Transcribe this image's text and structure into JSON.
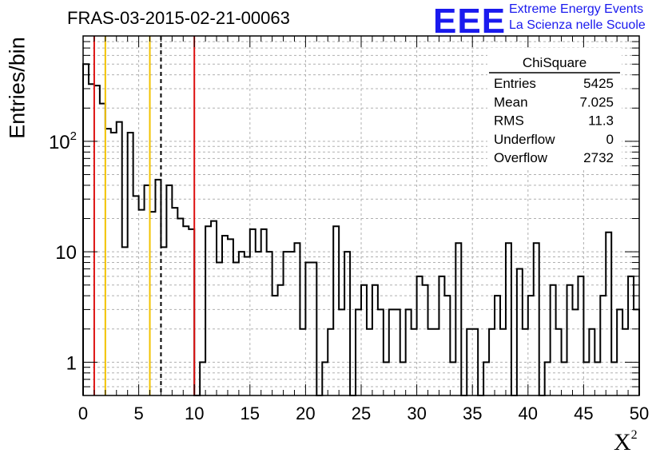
{
  "chart_data": {
    "type": "histogram",
    "title": "FRAS-03-2015-02-21-00063",
    "xlabel": "X",
    "xlabel_superscript": "2",
    "ylabel": "Entries/bin",
    "x_range": [
      0,
      50
    ],
    "y_scale": "log",
    "y_range": [
      0.5,
      900
    ],
    "bin_width": 0.5,
    "x_ticks": [
      0,
      5,
      10,
      15,
      20,
      25,
      30,
      35,
      40,
      45,
      50
    ],
    "y_ticks": [
      {
        "value": 1,
        "label": "1"
      },
      {
        "value": 10,
        "label": "10"
      },
      {
        "value": 100,
        "label": "10",
        "sup": "2"
      }
    ],
    "grid": true,
    "bin_counts": [
      500,
      330,
      320,
      220,
      130,
      120,
      150,
      11,
      120,
      32,
      24,
      40,
      23,
      45,
      11,
      40,
      25,
      20,
      17,
      16,
      0,
      1,
      17,
      19,
      8,
      14,
      13,
      8,
      10,
      9,
      16,
      10,
      16,
      10,
      4,
      5,
      10,
      10,
      12,
      2,
      8,
      8,
      0,
      1,
      2,
      17,
      3,
      10,
      0,
      3,
      5,
      2,
      5,
      3,
      1,
      3,
      3,
      1,
      3,
      2,
      6,
      5,
      2,
      2,
      6,
      4,
      1,
      12,
      0,
      2,
      2,
      0,
      1,
      2,
      4,
      2,
      12,
      0,
      7,
      2,
      4,
      12,
      0,
      1,
      5,
      2,
      1,
      5,
      3,
      6,
      1,
      2,
      1,
      4,
      15,
      1,
      3,
      2,
      6,
      3
    ],
    "vertical_lines": [
      {
        "x": 1,
        "color": "#dd1111",
        "style": "solid"
      },
      {
        "x": 2,
        "color": "#f2c200",
        "style": "solid"
      },
      {
        "x": 6,
        "color": "#f2c200",
        "style": "solid"
      },
      {
        "x": 7,
        "color": "#000000",
        "style": "dashed"
      },
      {
        "x": 10,
        "color": "#dd1111",
        "style": "solid"
      }
    ],
    "stats_box": {
      "name": "ChiSquare",
      "rows": [
        {
          "label": "Entries",
          "value": "5425"
        },
        {
          "label": "Mean",
          "value": "7.025"
        },
        {
          "label": "RMS",
          "value": "11.3"
        },
        {
          "label": "Underflow",
          "value": "0"
        },
        {
          "label": "Overflow",
          "value": "2732"
        }
      ]
    }
  },
  "header": {
    "logo_text": "EEE",
    "org_line1": "Extreme Energy Events",
    "org_line2": "La Scienza nelle Scuole"
  },
  "colors": {
    "logo": "#1a1aee",
    "red_line": "#dd1111",
    "yellow_line": "#f2c200"
  }
}
